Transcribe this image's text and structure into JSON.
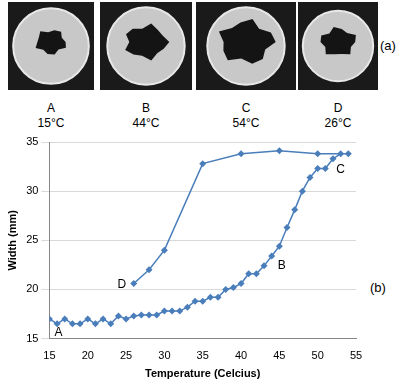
{
  "panels_label": "(a)",
  "panels": [
    {
      "label": "A",
      "caption": "15°C"
    },
    {
      "label": "B",
      "caption": "44°C"
    },
    {
      "label": "C",
      "caption": "54°C"
    },
    {
      "label": "D",
      "caption": "26°C"
    }
  ],
  "chart_data": {
    "type": "line",
    "panel_label": "(b)",
    "x_label": "Temperature (Celcius)",
    "y_label": "Width (mm)",
    "x": [
      15,
      16,
      17,
      18,
      19,
      20,
      21,
      22,
      23,
      24,
      25,
      26,
      27,
      28,
      29,
      30,
      31,
      32,
      33,
      34,
      35,
      36,
      37,
      38,
      39,
      40,
      41,
      42,
      43,
      44,
      45,
      46,
      47,
      48,
      49,
      50,
      51,
      52,
      53,
      54,
      50,
      45,
      40,
      35,
      30,
      28,
      26
    ],
    "values": [
      17.0,
      16.5,
      17.0,
      16.5,
      16.5,
      17.0,
      16.5,
      17.0,
      16.5,
      17.3,
      17.0,
      17.3,
      17.4,
      17.4,
      17.4,
      17.8,
      17.8,
      17.8,
      18.2,
      18.8,
      18.8,
      19.2,
      19.2,
      20.0,
      20.2,
      20.6,
      21.6,
      21.6,
      22.4,
      23.4,
      24.4,
      26.3,
      28.1,
      30.0,
      31.4,
      32.3,
      32.3,
      33.3,
      33.8,
      33.8,
      33.8,
      34.1,
      33.8,
      32.8,
      24.0,
      22.0,
      20.6
    ],
    "color": "#4a7ebb",
    "marker": "diamond",
    "line_style": "solid",
    "xlim": [
      15,
      55
    ],
    "xticks": [
      15,
      20,
      25,
      30,
      35,
      40,
      45,
      50,
      55
    ],
    "ylim": [
      15,
      35
    ],
    "yticks": [
      15,
      20,
      25,
      30,
      35
    ],
    "grid": true,
    "annotations": [
      {
        "text": "A",
        "x": 15,
        "y": 17.0
      },
      {
        "text": "B",
        "x": 44,
        "y": 23.4
      },
      {
        "text": "C",
        "x": 53,
        "y": 33.8
      },
      {
        "text": "D",
        "x": 26,
        "y": 20.6
      }
    ]
  }
}
